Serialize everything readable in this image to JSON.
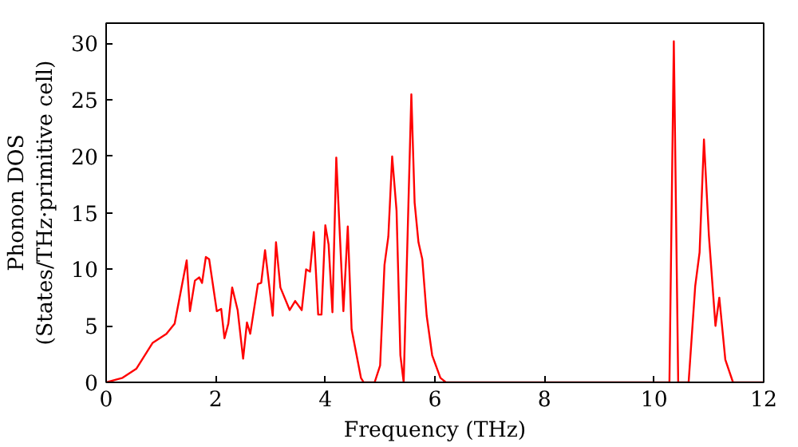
{
  "chart_data": {
    "type": "line",
    "xlabel": "Frequency (THz)",
    "ylabel": "Phonon DOS\n(States/THz·primitive cell)",
    "x": [
      0,
      0.3,
      0.55,
      0.85,
      1.1,
      1.25,
      1.47,
      1.53,
      1.62,
      1.7,
      1.75,
      1.82,
      1.88,
      2.02,
      2.1,
      2.16,
      2.23,
      2.3,
      2.4,
      2.5,
      2.57,
      2.63,
      2.77,
      2.83,
      2.9,
      3.04,
      3.1,
      3.18,
      3.35,
      3.45,
      3.57,
      3.65,
      3.72,
      3.79,
      3.87,
      3.93,
      4.0,
      4.06,
      4.13,
      4.2,
      4.33,
      4.41,
      4.48,
      4.65,
      4.7,
      4.9,
      5.0,
      5.08,
      5.15,
      5.22,
      5.3,
      5.37,
      5.43,
      5.57,
      5.63,
      5.7,
      5.77,
      5.85,
      5.95,
      6.1,
      6.2,
      10.28,
      10.36,
      10.44,
      10.63,
      10.75,
      10.83,
      10.91,
      11.0,
      11.12,
      11.19,
      11.3,
      11.44,
      12
    ],
    "series": [
      {
        "color": "#ff0000",
        "values": [
          0,
          0.4,
          1.2,
          3.5,
          4.3,
          5.2,
          10.8,
          6.3,
          9,
          9.3,
          8.8,
          11.1,
          10.9,
          6.3,
          6.5,
          3.9,
          5.2,
          8.4,
          6.4,
          2.1,
          5.3,
          4.3,
          8.7,
          8.8,
          11.7,
          5.9,
          12.4,
          8.4,
          6.4,
          7.2,
          6.4,
          10,
          9.8,
          13.3,
          6,
          6,
          13.9,
          12.2,
          6.2,
          19.9,
          6.3,
          13.8,
          4.7,
          0.4,
          0,
          0,
          1.5,
          10.4,
          12.9,
          20,
          15.2,
          2.4,
          0,
          25.5,
          15.9,
          12.4,
          10.9,
          5.9,
          2.4,
          0.4,
          0,
          0,
          30.2,
          0,
          0,
          8.5,
          11.5,
          21.5,
          13,
          5,
          7.5,
          2,
          0,
          0
        ]
      }
    ],
    "xlim": [
      0,
      12
    ],
    "ylim": [
      0,
      31.8
    ],
    "xticks": [
      0,
      2,
      4,
      6,
      8,
      10,
      12
    ],
    "yticks": [
      0,
      5,
      10,
      15,
      20,
      25,
      30
    ],
    "grid": false,
    "marker": "none",
    "line_style": "solid"
  }
}
